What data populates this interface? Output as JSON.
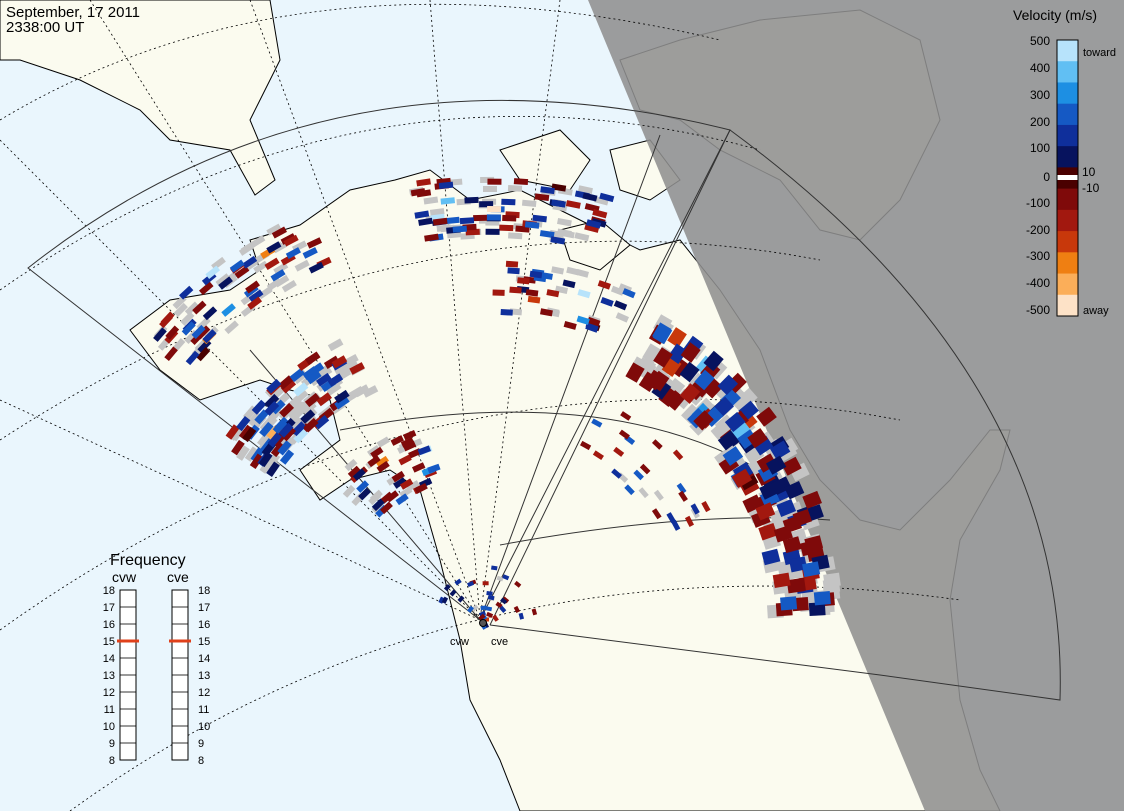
{
  "header": {
    "date": "September, 17 2011",
    "time": "2338:00 UT"
  },
  "colorbar": {
    "title": "Velocity (m/s)",
    "ticks": [
      "500",
      "400",
      "300",
      "200",
      "100",
      "10",
      "0",
      "-10",
      "-100",
      "-200",
      "-300",
      "-400",
      "-500"
    ],
    "toward_label": "toward",
    "away_label": "away",
    "colors": [
      "#b7e3fb",
      "#61bff3",
      "#1d8fe3",
      "#1559c4",
      "#0f2f9b",
      "#07135e",
      "#4a0000",
      "#7f0a0a",
      "#a2180f",
      "#c8380b",
      "#ef7f12",
      "#fbae59",
      "#fde2c7"
    ]
  },
  "frequency": {
    "title": "Frequency",
    "radars": [
      {
        "name": "cvw",
        "mhz": 15
      },
      {
        "name": "cve",
        "mhz": 15
      }
    ],
    "scale_min": 8,
    "scale_max": 18,
    "labels": [
      "18",
      "17",
      "16",
      "15",
      "14",
      "13",
      "12",
      "11",
      "10",
      "9",
      "8"
    ]
  },
  "map": {
    "land_color": "#fbfbef",
    "ocean_color": "#eaf6fd",
    "night_color": "#8f8f8f",
    "ground_scatter_color": "#c4c4c4",
    "station_labels": [
      "cvw",
      "cve"
    ]
  }
}
